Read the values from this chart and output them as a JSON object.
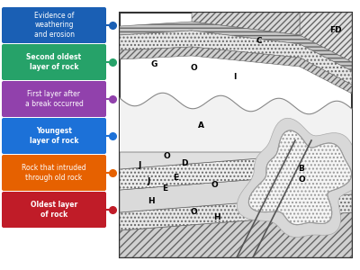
{
  "legend_items": [
    {
      "label": "Evidence of\nweathering\nand erosion",
      "color": "#1a5fb4",
      "bold": false
    },
    {
      "label": "Second oldest\nlayer of rock",
      "color": "#26a269",
      "bold": true
    },
    {
      "label": "First layer after\na break occurred",
      "color": "#9141ac",
      "bold": false
    },
    {
      "label": "Youngest\nlayer of rock",
      "color": "#1c71d8",
      "bold": true
    },
    {
      "label": "Rock that intruded\nthrough old rock",
      "color": "#e66100",
      "bold": false
    },
    {
      "label": "Oldest layer\nof rock",
      "color": "#c01c28",
      "bold": true
    }
  ],
  "background_color": "#ffffff"
}
